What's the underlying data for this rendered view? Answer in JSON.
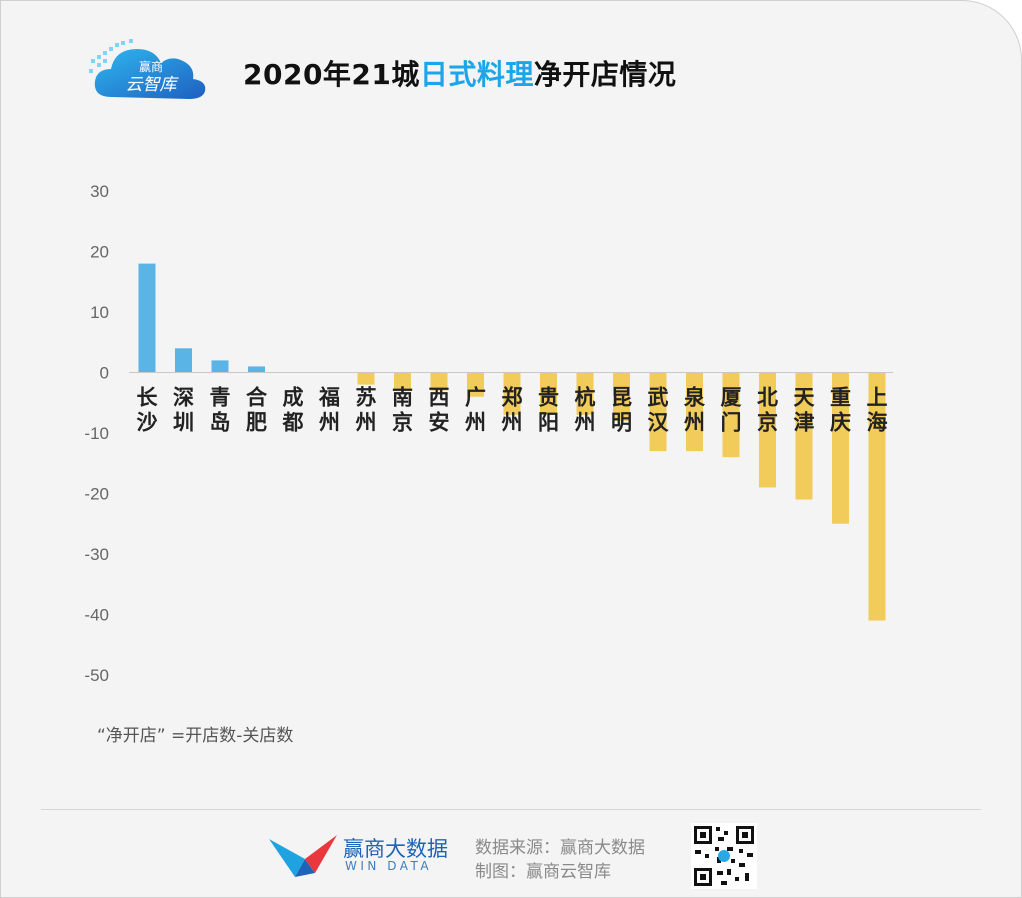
{
  "header": {
    "logo_text_top": "赢商",
    "logo_text_bottom": "云智库",
    "title_prefix": "2020年21城",
    "title_highlight": "日式料理",
    "title_suffix": "净开店情况"
  },
  "colors": {
    "positive": "#5ab4e5",
    "negative": "#f2cc5a",
    "highlight": "#1aa6e8"
  },
  "chart_data": {
    "type": "bar",
    "categories": [
      "长沙",
      "深圳",
      "青岛",
      "合肥",
      "成都",
      "福州",
      "苏州",
      "南京",
      "西安",
      "广州",
      "郑州",
      "贵阳",
      "杭州",
      "昆明",
      "武汉",
      "泉州",
      "厦门",
      "北京",
      "天津",
      "重庆",
      "上海"
    ],
    "values": [
      18,
      4,
      2,
      1,
      0,
      0,
      -2,
      -3,
      -3,
      -4,
      -7,
      -7,
      -7,
      -8,
      -13,
      -13,
      -14,
      -19,
      -21,
      -25,
      -41
    ],
    "title": "2020年21城日式料理净开店情况",
    "xlabel": "",
    "ylabel": "",
    "ylim": [
      -50,
      30
    ],
    "yticks": [
      "30",
      "20",
      "10",
      "0",
      "-10",
      "-20",
      "-30",
      "-40",
      "-50"
    ],
    "grid": false,
    "legend": "none"
  },
  "footnote": "“净开店” =开店数-关店数",
  "footer": {
    "brand_cn": "赢商大数据",
    "brand_en": "WIN DATA",
    "source": "数据来源：赢商大数据",
    "maker": "制图：赢商云智库"
  }
}
